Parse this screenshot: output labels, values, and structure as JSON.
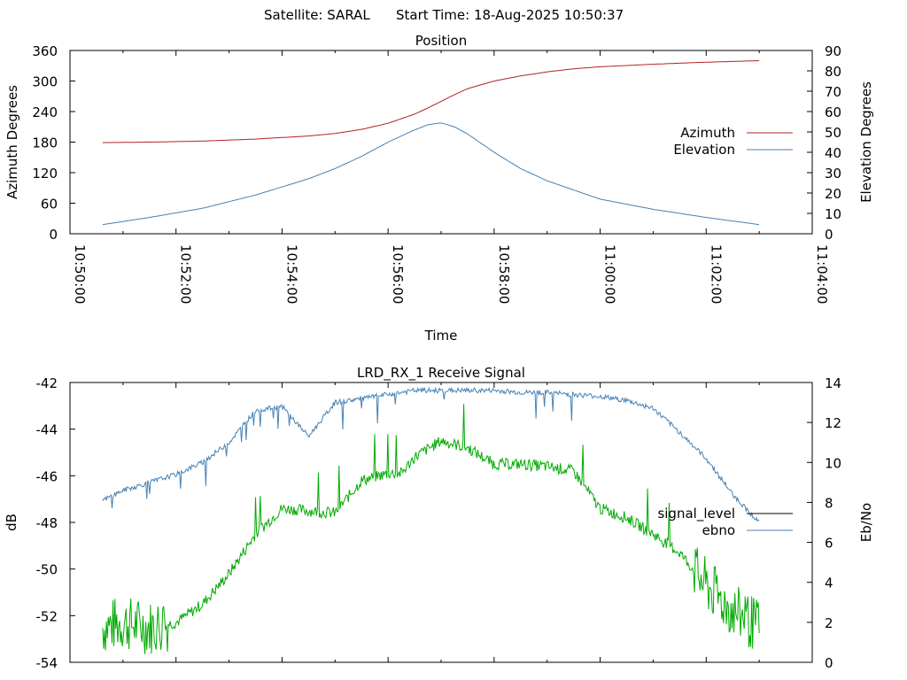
{
  "header": {
    "satellite": "Satellite: SARAL",
    "start_time": "Start Time: 18-Aug-2025 10:50:37"
  },
  "chart_data": [
    {
      "type": "line",
      "title": "Position",
      "xlabel": "Time",
      "ylabel": "Azimuth Degrees",
      "y2label": "Elevation Degrees",
      "xlim": [
        "10:50:00",
        "11:04:00"
      ],
      "ylim": [
        0,
        360
      ],
      "y2lim": [
        0,
        90
      ],
      "x_ticks": [
        "10:50:00",
        "10:52:00",
        "10:54:00",
        "10:56:00",
        "10:58:00",
        "11:00:00",
        "11:02:00",
        "11:04:00"
      ],
      "y_ticks": [
        "0",
        "60",
        "120",
        "180",
        "240",
        "300",
        "360"
      ],
      "y2_ticks": [
        "0",
        "10",
        "20",
        "30",
        "40",
        "50",
        "60",
        "70",
        "80",
        "90"
      ],
      "legend_position": "right",
      "x": [
        "10:50:37",
        "10:51:30",
        "10:52:30",
        "10:53:30",
        "10:54:30",
        "10:55:00",
        "10:55:30",
        "10:56:00",
        "10:56:30",
        "10:56:45",
        "10:57:00",
        "10:57:15",
        "10:57:30",
        "10:58:00",
        "10:58:30",
        "10:59:00",
        "10:59:30",
        "11:00:00",
        "11:01:00",
        "11:02:00",
        "11:03:00"
      ],
      "series": [
        {
          "name": "Azimuth",
          "axis": "left",
          "color": "#b22222",
          "values": [
            179,
            180,
            182,
            186,
            192,
            197,
            205,
            217,
            235,
            247,
            260,
            273,
            285,
            300,
            310,
            318,
            324,
            328,
            333,
            337,
            340
          ]
        },
        {
          "name": "Elevation",
          "axis": "right",
          "color": "#4682b4",
          "values": [
            4.5,
            8,
            12.5,
            19,
            27,
            32,
            38,
            45,
            51,
            53.5,
            54.5,
            52.5,
            49,
            40,
            32,
            26,
            21.5,
            17,
            12,
            8,
            4.5
          ]
        }
      ]
    },
    {
      "type": "line",
      "title": "LRD_RX_1 Receive Signal",
      "xlabel": "",
      "ylabel": "dB",
      "y2label": "Eb/No",
      "ylim": [
        -54,
        -42
      ],
      "y2lim": [
        0,
        14
      ],
      "y_ticks": [
        "-42",
        "-44",
        "-46",
        "-48",
        "-50",
        "-52",
        "-54"
      ],
      "y2_ticks": [
        "0",
        "2",
        "4",
        "6",
        "8",
        "10",
        "12",
        "14"
      ],
      "legend_position": "right",
      "legend": [
        {
          "name": "signal_level",
          "color": "#000000"
        },
        {
          "name": "ebno",
          "color": "#4682b4"
        }
      ],
      "x": [
        "10:50:37",
        "10:51:00",
        "10:51:30",
        "10:52:00",
        "10:52:30",
        "10:53:00",
        "10:53:30",
        "10:54:00",
        "10:54:30",
        "10:55:00",
        "10:55:30",
        "10:56:00",
        "10:56:15",
        "10:56:30",
        "10:57:00",
        "10:57:30",
        "10:58:00",
        "10:58:30",
        "10:59:00",
        "10:59:30",
        "11:00:00",
        "11:00:30",
        "11:01:00",
        "11:01:30",
        "11:02:00",
        "11:02:30",
        "11:03:00"
      ],
      "series": [
        {
          "name": "",
          "axis": "left",
          "color": "#00aa00",
          "values": [
            -52.5,
            -52.3,
            -52.5,
            -52.3,
            -51.5,
            -50.2,
            -48.5,
            -47.4,
            -47.5,
            -47.6,
            -46.2,
            -45.9,
            -45.9,
            -45.2,
            -44.5,
            -44.8,
            -45.5,
            -45.5,
            -45.6,
            -45.8,
            -47.4,
            -47.8,
            -48.5,
            -49.3,
            -50.7,
            -51.8,
            -52.5
          ]
        },
        {
          "name": "ebno",
          "axis": "right",
          "color": "#4682b4",
          "values": [
            8.1,
            8.6,
            9.0,
            9.4,
            10.0,
            11.0,
            12.6,
            12.8,
            11.3,
            13.0,
            13.2,
            13.4,
            13.5,
            13.6,
            13.6,
            13.6,
            13.6,
            13.5,
            13.5,
            13.4,
            13.3,
            13.1,
            12.7,
            11.5,
            10.2,
            8.4,
            7.0
          ]
        }
      ]
    }
  ]
}
